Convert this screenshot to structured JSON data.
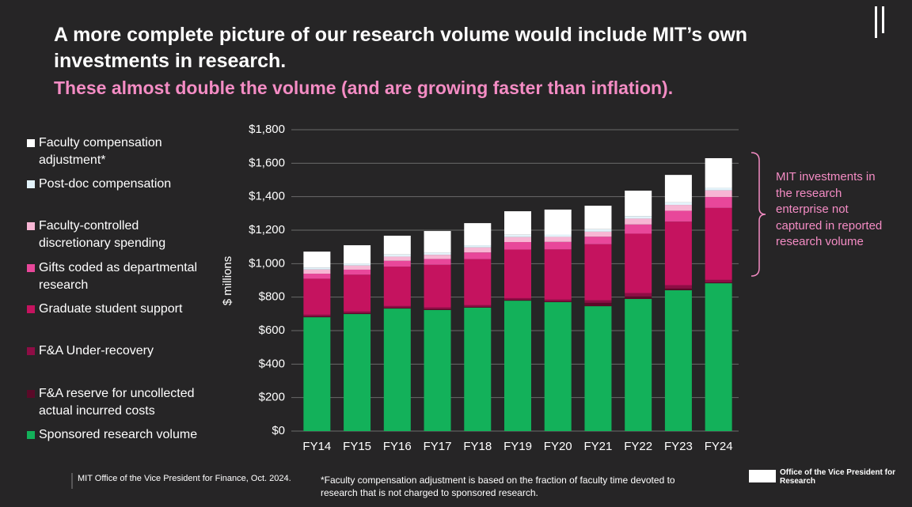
{
  "chart_data": {
    "type": "stacked_bar",
    "title": "A more complete picture of our research volume would include MIT’s own investments in research.",
    "subtitle": "These almost double the volume (and are growing faster than inflation).",
    "y_label": "$ millions",
    "categories": [
      "FY14",
      "FY15",
      "FY16",
      "FY17",
      "FY18",
      "FY19",
      "FY20",
      "FY21",
      "FY22",
      "FY23",
      "FY24"
    ],
    "series": [
      {
        "name": "Sponsored research volume",
        "color": "#13b15a",
        "values": [
          680,
          699,
          732,
          723,
          737,
          779,
          770,
          746,
          789,
          841,
          883
        ]
      },
      {
        "name": "F&A reserve for uncollected actual incurred costs",
        "color": "#5a0a28",
        "values": [
          5,
          5,
          5,
          5,
          5,
          5,
          5,
          20,
          15,
          10,
          5
        ]
      },
      {
        "name": "F&A Under-recovery",
        "color": "#8e0d45",
        "values": [
          10,
          10,
          10,
          10,
          10,
          10,
          10,
          15,
          20,
          20,
          15
        ]
      },
      {
        "name": "Graduate student support",
        "color": "#c5135f",
        "values": [
          215,
          220,
          235,
          255,
          275,
          290,
          300,
          335,
          355,
          380,
          430
        ]
      },
      {
        "name": "Gifts coded as departmental research",
        "color": "#e8479a",
        "values": [
          30,
          30,
          35,
          35,
          40,
          45,
          45,
          45,
          55,
          65,
          65
        ]
      },
      {
        "name": "Faculty-controlled discretionary spending",
        "color": "#f7b6d4",
        "values": [
          25,
          25,
          25,
          25,
          30,
          30,
          30,
          30,
          35,
          35,
          40
        ]
      },
      {
        "name": "Post-doc compensation",
        "color": "#e3f3fa",
        "values": [
          12,
          12,
          13,
          13,
          13,
          14,
          14,
          15,
          15,
          15,
          15
        ]
      },
      {
        "name": "Faculty compensation adjustment*",
        "color": "#ffffff",
        "values": [
          95,
          109,
          112,
          129,
          132,
          140,
          149,
          140,
          152,
          164,
          177
        ]
      }
    ],
    "ylim": [
      0,
      1800
    ],
    "yticks": [
      {
        "value": 0,
        "label": "$0"
      },
      {
        "value": 200,
        "label": "$200"
      },
      {
        "value": 400,
        "label": "$400"
      },
      {
        "value": 600,
        "label": "$600"
      },
      {
        "value": 800,
        "label": "$800"
      },
      {
        "value": 1000,
        "label": "$1,000"
      },
      {
        "value": 1200,
        "label": "$1,200"
      },
      {
        "value": 1400,
        "label": "$1,400"
      },
      {
        "value": 1600,
        "label": "$1,600"
      },
      {
        "value": 1800,
        "label": "$1,800"
      }
    ],
    "grid": true,
    "annotation": "MIT investments in the research enterprise not captured in reported research volume",
    "source": "MIT Office of the Vice President for Finance, Oct. 2024.",
    "footnote": "*Faculty compensation adjustment is based on the fraction of faculty time devoted to research that is not charged to sponsored research.",
    "logo_text": "Office of the Vice President for Research"
  }
}
